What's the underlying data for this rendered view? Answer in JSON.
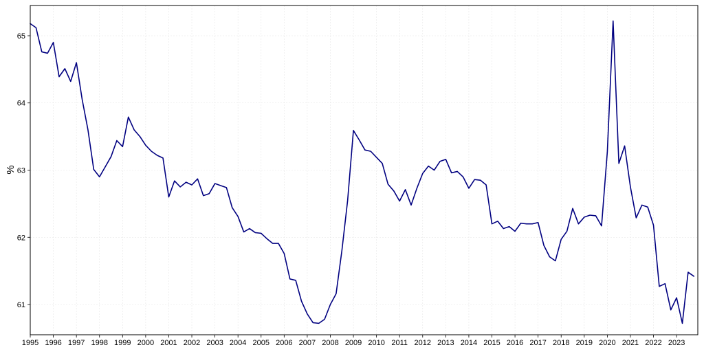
{
  "chart_data": {
    "type": "line",
    "title": "",
    "xlabel": "",
    "ylabel": "%",
    "grid": true,
    "xlim": [
      1995.0,
      2023.92
    ],
    "ylim": [
      60.55,
      65.45
    ],
    "x_ticks": [
      1995,
      1996,
      1997,
      1998,
      1999,
      2000,
      2001,
      2002,
      2003,
      2004,
      2005,
      2006,
      2007,
      2008,
      2009,
      2010,
      2011,
      2012,
      2013,
      2014,
      2015,
      2016,
      2017,
      2018,
      2019,
      2020,
      2021,
      2022,
      2023
    ],
    "x_tick_labels": [
      "1995",
      "1996",
      "1997",
      "1998",
      "1999",
      "2000",
      "2001",
      "2002",
      "2003",
      "2004",
      "2005",
      "2006",
      "2007",
      "2008",
      "2009",
      "2010",
      "2011",
      "2012",
      "2013",
      "2014",
      "2015",
      "2016",
      "2017",
      "2018",
      "2019",
      "2020",
      "2021",
      "2022",
      "2023"
    ],
    "y_ticks": [
      61,
      62,
      63,
      64,
      65
    ],
    "y_tick_labels": [
      "61",
      "62",
      "63",
      "64",
      "65"
    ],
    "line_color": "#000080",
    "series": [
      {
        "x": [
          1995.0,
          1995.25,
          1995.5,
          1995.75,
          1996.0,
          1996.25,
          1996.5,
          1996.75,
          1997.0,
          1997.25,
          1997.5,
          1997.75,
          1998.0,
          1998.25,
          1998.5,
          1998.75,
          1999.0,
          1999.25,
          1999.5,
          1999.75,
          2000.0,
          2000.25,
          2000.5,
          2000.75,
          2001.0,
          2001.25,
          2001.5,
          2001.75,
          2002.0,
          2002.25,
          2002.5,
          2002.75,
          2003.0,
          2003.25,
          2003.5,
          2003.75,
          2004.0,
          2004.25,
          2004.5,
          2004.75,
          2005.0,
          2005.25,
          2005.5,
          2005.75,
          2006.0,
          2006.25,
          2006.5,
          2006.75,
          2007.0,
          2007.25,
          2007.5,
          2007.75,
          2008.0,
          2008.25,
          2008.5,
          2008.75,
          2009.0,
          2009.25,
          2009.5,
          2009.75,
          2010.0,
          2010.25,
          2010.5,
          2010.75,
          2011.0,
          2011.25,
          2011.5,
          2011.75,
          2012.0,
          2012.25,
          2012.5,
          2012.75,
          2013.0,
          2013.25,
          2013.5,
          2013.75,
          2014.0,
          2014.25,
          2014.5,
          2014.75,
          2015.0,
          2015.25,
          2015.5,
          2015.75,
          2016.0,
          2016.25,
          2016.5,
          2016.75,
          2017.0,
          2017.25,
          2017.5,
          2017.75,
          2018.0,
          2018.25,
          2018.5,
          2018.75,
          2019.0,
          2019.25,
          2019.5,
          2019.75,
          2020.0,
          2020.25,
          2020.5,
          2020.75,
          2021.0,
          2021.25,
          2021.5,
          2021.75,
          2022.0,
          2022.25,
          2022.5,
          2022.75,
          2023.0,
          2023.25,
          2023.5,
          2023.75
        ],
        "values": [
          65.18,
          65.12,
          64.76,
          64.74,
          64.9,
          64.39,
          64.51,
          64.32,
          64.6,
          64.05,
          63.6,
          63.01,
          62.9,
          63.05,
          63.2,
          63.44,
          63.35,
          63.79,
          63.6,
          63.5,
          63.37,
          63.28,
          63.22,
          63.18,
          62.6,
          62.84,
          62.75,
          62.82,
          62.78,
          62.87,
          62.62,
          62.65,
          62.8,
          62.77,
          62.74,
          62.44,
          62.31,
          62.08,
          62.13,
          62.07,
          62.06,
          61.98,
          61.91,
          61.91,
          61.76,
          61.38,
          61.36,
          61.05,
          60.86,
          60.73,
          60.72,
          60.78,
          61.0,
          61.16,
          61.8,
          62.55,
          63.59,
          63.45,
          63.3,
          63.28,
          63.19,
          63.1,
          62.79,
          62.69,
          62.54,
          62.71,
          62.48,
          62.73,
          62.95,
          63.06,
          63.0,
          63.13,
          63.16,
          62.96,
          62.98,
          62.9,
          62.73,
          62.86,
          62.85,
          62.78,
          62.2,
          62.24,
          62.13,
          62.16,
          62.09,
          62.21,
          62.2,
          62.2,
          62.22,
          61.88,
          61.71,
          61.65,
          61.97,
          62.09,
          62.43,
          62.2,
          62.3,
          62.33,
          62.32,
          62.17,
          63.27,
          65.22,
          63.1,
          63.36,
          62.75,
          62.29,
          62.48,
          62.45,
          62.18,
          61.27,
          61.31,
          60.92,
          61.1,
          60.72,
          61.48,
          61.42
        ]
      }
    ]
  }
}
